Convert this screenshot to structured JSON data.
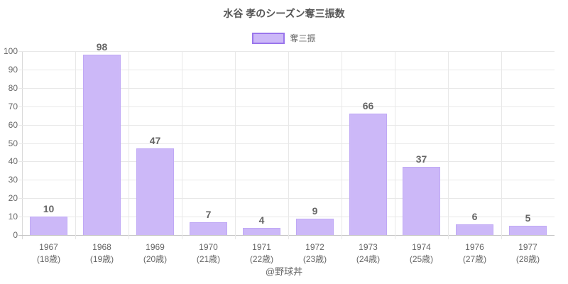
{
  "title": "水谷 孝のシーズン奪三振数",
  "footer": "@野球丼",
  "colors": {
    "bar_fill": "#CCB8F8",
    "bar_border": "#9A76EC",
    "bar_stroke": "#C0A9F5",
    "grid": "#E8E8E8",
    "axis": "#C4C4C4",
    "axis_y": "#D9D9D9",
    "text": "#666666",
    "title": "#555555"
  },
  "chart_data": {
    "type": "bar",
    "title": "水谷 孝のシーズン奪三振数",
    "categories": [
      "1967",
      "1968",
      "1969",
      "1970",
      "1971",
      "1972",
      "1973",
      "1974",
      "1976",
      "1977"
    ],
    "categories_sub": [
      "(18歳)",
      "(19歳)",
      "(20歳)",
      "(21歳)",
      "(22歳)",
      "(23歳)",
      "(24歳)",
      "(25歳)",
      "(27歳)",
      "(28歳)"
    ],
    "series": [
      {
        "name": "奪三振",
        "values": [
          10,
          98,
          47,
          7,
          4,
          9,
          66,
          37,
          6,
          5
        ]
      }
    ],
    "xlabel": "",
    "ylabel": "",
    "ylim": [
      0,
      100
    ],
    "ytick_step": 10,
    "grid": true,
    "legend_position": "top"
  }
}
